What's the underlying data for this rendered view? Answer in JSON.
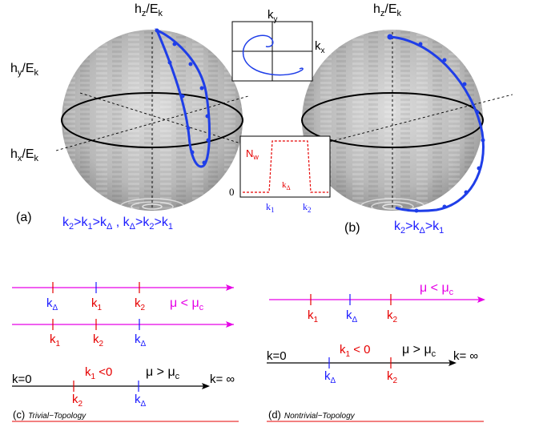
{
  "colors": {
    "trajectory": "#1f3ee8",
    "magenta": "#e600e6",
    "red": "#e60000",
    "blue": "#1a1aff",
    "black": "#000000"
  },
  "sphere_a": {
    "hz": "h",
    "hz_sub": "z",
    "hz_den": "/E",
    "hz_den_sub": "k",
    "hy": "h",
    "hy_sub": "y",
    "hy_den": "/E",
    "hy_den_sub": "k",
    "hx": "h",
    "hx_sub": "x",
    "hx_den": "/E",
    "hx_den_sub": "k"
  },
  "sphere_b": {
    "hz": "h",
    "hz_sub": "z",
    "hz_den": "/E",
    "hz_den_sub": "k"
  },
  "inset_top": {
    "ky": "k",
    "ky_sub": "y",
    "kx": "k",
    "kx_sub": "x"
  },
  "inset_bottom": {
    "nw": "N",
    "nw_sub": "w",
    "zero": "0",
    "kdelta": "k",
    "kdelta_sub": "Δ",
    "k1": "k",
    "k1_sub": "1",
    "k2": "k",
    "k2_sub": "2"
  },
  "panel_a": {
    "label": "(a)",
    "condition": [
      {
        "t": "k"
      },
      {
        "s": "2"
      },
      {
        "t": ">k"
      },
      {
        "s": "1"
      },
      {
        "t": ">k"
      },
      {
        "s": "Δ"
      },
      {
        "t": " , k"
      },
      {
        "s": "Δ"
      },
      {
        "t": ">k"
      },
      {
        "s": "2"
      },
      {
        "t": ">k"
      },
      {
        "s": "1"
      }
    ]
  },
  "panel_b": {
    "label": "(b)",
    "condition": [
      {
        "t": "k"
      },
      {
        "s": "2"
      },
      {
        "t": ">k"
      },
      {
        "s": "Δ"
      },
      {
        "t": ">k"
      },
      {
        "s": "1"
      }
    ]
  },
  "panel_c": {
    "label": "(c)",
    "title": "Trivial−Topology",
    "line1": {
      "ticks": [
        {
          "k": "k",
          "sub": "Δ",
          "color": "blue"
        },
        {
          "k": "k",
          "sub": "1",
          "color": "red"
        },
        {
          "k": "k",
          "sub": "2",
          "color": "red"
        }
      ],
      "mu": "μ < μ",
      "mu_sub": "c"
    },
    "line2": {
      "ticks": [
        {
          "k": "k",
          "sub": "1",
          "color": "red"
        },
        {
          "k": "k",
          "sub": "2",
          "color": "red"
        },
        {
          "k": "k",
          "sub": "Δ",
          "color": "blue"
        }
      ]
    },
    "line3": {
      "k0": "k=0",
      "kinf": "k= ∞",
      "k1lt0": "k",
      "k1lt0_sub": "1",
      "k1lt0_tail": " <0",
      "mu": "μ > μ",
      "mu_sub": "c",
      "ticks": [
        {
          "k": "k",
          "sub": "2",
          "color": "red"
        },
        {
          "k": "k",
          "sub": "Δ",
          "color": "blue"
        }
      ]
    }
  },
  "panel_d": {
    "label": "(d)",
    "title": "Nontrivial−Topology",
    "line1": {
      "mu": "μ < μ",
      "mu_sub": "c",
      "ticks": [
        {
          "k": "k",
          "sub": "1",
          "color": "red"
        },
        {
          "k": "k",
          "sub": "Δ",
          "color": "blue"
        },
        {
          "k": "k",
          "sub": "2",
          "color": "red"
        }
      ]
    },
    "line2": {
      "k0": "k=0",
      "kinf": "k= ∞",
      "k1lt0": "k",
      "k1lt0_sub": "1",
      "k1lt0_tail": " < 0",
      "mu": "μ > μ",
      "mu_sub": "c",
      "ticks": [
        {
          "k": "k",
          "sub": "Δ",
          "color": "blue"
        },
        {
          "k": "k",
          "sub": "2",
          "color": "red"
        }
      ]
    }
  }
}
